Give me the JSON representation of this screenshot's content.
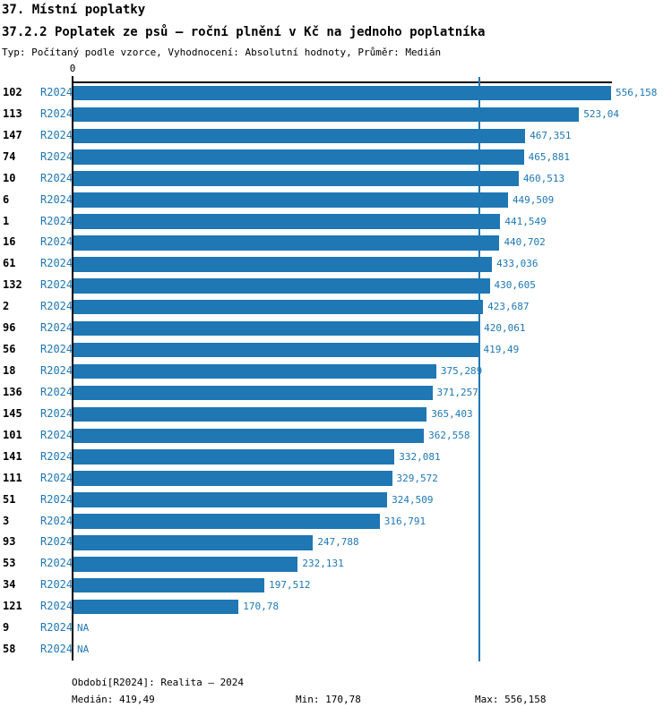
{
  "header": {
    "title": "37. Místní poplatky",
    "subtitle": "37.2.2 Poplatek ze psů – roční plnění v Kč na jednoho poplatníka",
    "meta": "Typ: Počítaný podle vzorce, Vyhodnocení: Absolutní hodnoty, Průměr: Medián"
  },
  "chart_data": {
    "type": "bar",
    "orientation": "horizontal",
    "title": "37.2.2 Poplatek ze psů – roční plnění v Kč na jednoho poplatníka",
    "xlabel": "Kč na jednoho poplatníka",
    "ylabel": "",
    "xlim": [
      0,
      556.158
    ],
    "axis_origin_label": "0",
    "grid": false,
    "legend_position": "none",
    "period_label": "R2024",
    "median_value": 419.49,
    "na_label": "NA",
    "colors": {
      "bar": "#1f77b4",
      "median_line": "#1f77b4",
      "value_text": "#1f77b4",
      "period_text": "#1f77b4",
      "id_text": "#000000",
      "axis": "#000000"
    },
    "rows": [
      {
        "id": "102",
        "period": "R2024",
        "value": 556.158,
        "label": "556,158"
      },
      {
        "id": "113",
        "period": "R2024",
        "value": 523.04,
        "label": "523,04"
      },
      {
        "id": "147",
        "period": "R2024",
        "value": 467.351,
        "label": "467,351"
      },
      {
        "id": "74",
        "period": "R2024",
        "value": 465.881,
        "label": "465,881"
      },
      {
        "id": "10",
        "period": "R2024",
        "value": 460.513,
        "label": "460,513"
      },
      {
        "id": "6",
        "period": "R2024",
        "value": 449.509,
        "label": "449,509"
      },
      {
        "id": "1",
        "period": "R2024",
        "value": 441.549,
        "label": "441,549"
      },
      {
        "id": "16",
        "period": "R2024",
        "value": 440.702,
        "label": "440,702"
      },
      {
        "id": "61",
        "period": "R2024",
        "value": 433.036,
        "label": "433,036"
      },
      {
        "id": "132",
        "period": "R2024",
        "value": 430.605,
        "label": "430,605"
      },
      {
        "id": "2",
        "period": "R2024",
        "value": 423.687,
        "label": "423,687"
      },
      {
        "id": "96",
        "period": "R2024",
        "value": 420.061,
        "label": "420,061"
      },
      {
        "id": "56",
        "period": "R2024",
        "value": 419.49,
        "label": "419,49"
      },
      {
        "id": "18",
        "period": "R2024",
        "value": 375.289,
        "label": "375,289"
      },
      {
        "id": "136",
        "period": "R2024",
        "value": 371.257,
        "label": "371,257"
      },
      {
        "id": "145",
        "period": "R2024",
        "value": 365.403,
        "label": "365,403"
      },
      {
        "id": "101",
        "period": "R2024",
        "value": 362.558,
        "label": "362,558"
      },
      {
        "id": "141",
        "period": "R2024",
        "value": 332.081,
        "label": "332,081"
      },
      {
        "id": "111",
        "period": "R2024",
        "value": 329.572,
        "label": "329,572"
      },
      {
        "id": "51",
        "period": "R2024",
        "value": 324.509,
        "label": "324,509"
      },
      {
        "id": "3",
        "period": "R2024",
        "value": 316.791,
        "label": "316,791"
      },
      {
        "id": "93",
        "period": "R2024",
        "value": 247.788,
        "label": "247,788"
      },
      {
        "id": "53",
        "period": "R2024",
        "value": 232.131,
        "label": "232,131"
      },
      {
        "id": "34",
        "period": "R2024",
        "value": 197.512,
        "label": "197,512"
      },
      {
        "id": "121",
        "period": "R2024",
        "value": 170.78,
        "label": "170,78"
      },
      {
        "id": "9",
        "period": "R2024",
        "value": null,
        "label": "NA"
      },
      {
        "id": "58",
        "period": "R2024",
        "value": null,
        "label": "NA"
      }
    ]
  },
  "footer": {
    "period": "Období[R2024]: Realita – 2024",
    "median": "Medián: 419,49",
    "min": "Min: 170,78",
    "max": "Max: 556,158"
  }
}
